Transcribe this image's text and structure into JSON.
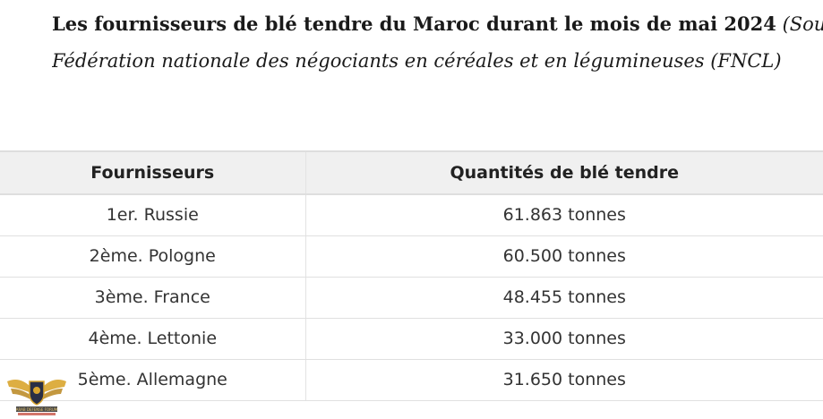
{
  "caption": {
    "bold": "Les fournisseurs de blé tendre du Maroc durant le mois de mai 2024",
    "italic_line1": "(Source:",
    "italic_line2": "Fédération nationale des négociants en céréales et en légumineuses (FNCL)"
  },
  "table": {
    "headers": [
      "Fournisseurs",
      "Quantités de blé tendre"
    ],
    "rows": [
      [
        "1er. Russie",
        "61.863 tonnes"
      ],
      [
        "2ème. Pologne",
        "60.500 tonnes"
      ],
      [
        "3ème. France",
        "48.455 tonnes"
      ],
      [
        "4ème. Lettonie",
        "33.000 tonnes"
      ],
      [
        "5ème. Allemagne",
        "31.650 tonnes"
      ]
    ]
  },
  "watermark": {
    "text": "ARAB DEFENSE FORUM",
    "icon": "eagle-shield-logo"
  }
}
